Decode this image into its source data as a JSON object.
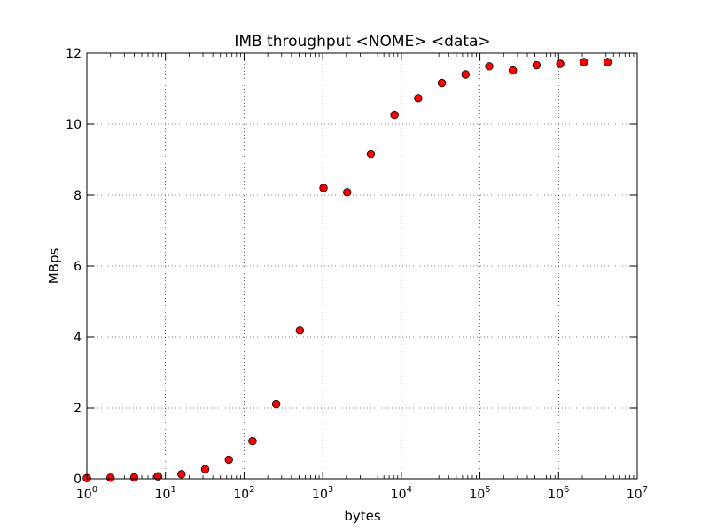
{
  "chart_data": {
    "type": "scatter",
    "title": "IMB throughput   <NOME>  <data>",
    "xlabel": "bytes",
    "ylabel": "MBps",
    "xscale": "log",
    "xlim": [
      1,
      10000000
    ],
    "ylim": [
      0,
      12
    ],
    "grid": true,
    "x_tick_values": [
      1,
      10,
      100,
      1000,
      10000,
      100000,
      1000000,
      10000000
    ],
    "x_tick_labels": [
      {
        "base": "10",
        "exp": "0"
      },
      {
        "base": "10",
        "exp": "1"
      },
      {
        "base": "10",
        "exp": "2"
      },
      {
        "base": "10",
        "exp": "3"
      },
      {
        "base": "10",
        "exp": "4"
      },
      {
        "base": "10",
        "exp": "5"
      },
      {
        "base": "10",
        "exp": "6"
      },
      {
        "base": "10",
        "exp": "7"
      }
    ],
    "y_ticks": [
      0,
      2,
      4,
      6,
      8,
      10,
      12
    ],
    "marker_color": "#ff0000",
    "marker_edge_color": "#000000",
    "points": [
      {
        "x": 1,
        "y": 0.02
      },
      {
        "x": 2,
        "y": 0.03
      },
      {
        "x": 4,
        "y": 0.04
      },
      {
        "x": 8,
        "y": 0.07
      },
      {
        "x": 16,
        "y": 0.13
      },
      {
        "x": 32,
        "y": 0.27
      },
      {
        "x": 64,
        "y": 0.54
      },
      {
        "x": 128,
        "y": 1.06
      },
      {
        "x": 256,
        "y": 2.11
      },
      {
        "x": 512,
        "y": 4.18
      },
      {
        "x": 1024,
        "y": 8.2
      },
      {
        "x": 2048,
        "y": 8.08
      },
      {
        "x": 4096,
        "y": 9.16
      },
      {
        "x": 8192,
        "y": 10.26
      },
      {
        "x": 16384,
        "y": 10.73
      },
      {
        "x": 32768,
        "y": 11.16
      },
      {
        "x": 65536,
        "y": 11.4
      },
      {
        "x": 131072,
        "y": 11.63
      },
      {
        "x": 262144,
        "y": 11.51
      },
      {
        "x": 524288,
        "y": 11.66
      },
      {
        "x": 1048576,
        "y": 11.7
      },
      {
        "x": 2097152,
        "y": 11.75
      },
      {
        "x": 4194304,
        "y": 11.75
      }
    ]
  }
}
